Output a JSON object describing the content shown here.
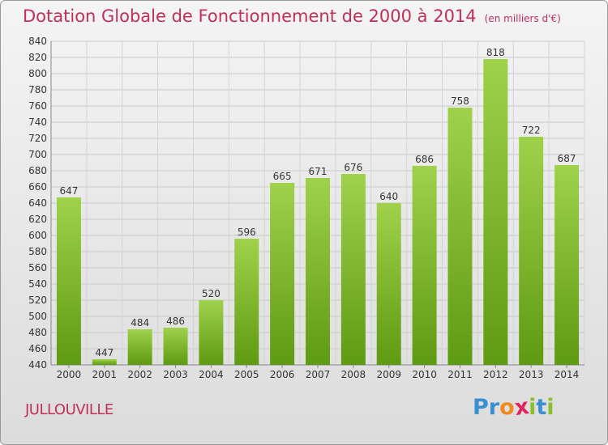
{
  "title": "Dotation Globale de Fonctionnement de 2000 à 2014",
  "subtitle": "(en milliers d'€)",
  "commune": "JULLOUVILLE",
  "logo": {
    "letters": [
      "P",
      "r",
      "o",
      "x",
      "i",
      "t",
      "i"
    ],
    "colors": [
      "#3a8fd0",
      "#3a8fd0",
      "#f08a1c",
      "#e0245e",
      "#8cbf2e",
      "#3a8fd0",
      "#8cbf2e"
    ]
  },
  "colors": {
    "bar_top": "#9fd24a",
    "bar_bottom": "#5e9a12",
    "title": "#c0305a"
  },
  "chart_data": {
    "type": "bar",
    "title": "Dotation Globale de Fonctionnement de 2000 à 2014",
    "subtitle": "(en milliers d'€)",
    "categories": [
      "2000",
      "2001",
      "2002",
      "2003",
      "2004",
      "2005",
      "2006",
      "2007",
      "2008",
      "2009",
      "2010",
      "2011",
      "2012",
      "2013",
      "2014"
    ],
    "values": [
      647,
      447,
      484,
      486,
      520,
      596,
      665,
      671,
      676,
      640,
      686,
      758,
      818,
      722,
      687
    ],
    "ylim": [
      440,
      840
    ],
    "yticks": [
      440,
      460,
      480,
      500,
      520,
      540,
      560,
      580,
      600,
      620,
      640,
      660,
      680,
      700,
      720,
      740,
      760,
      780,
      800,
      820,
      840
    ],
    "grid": true
  }
}
